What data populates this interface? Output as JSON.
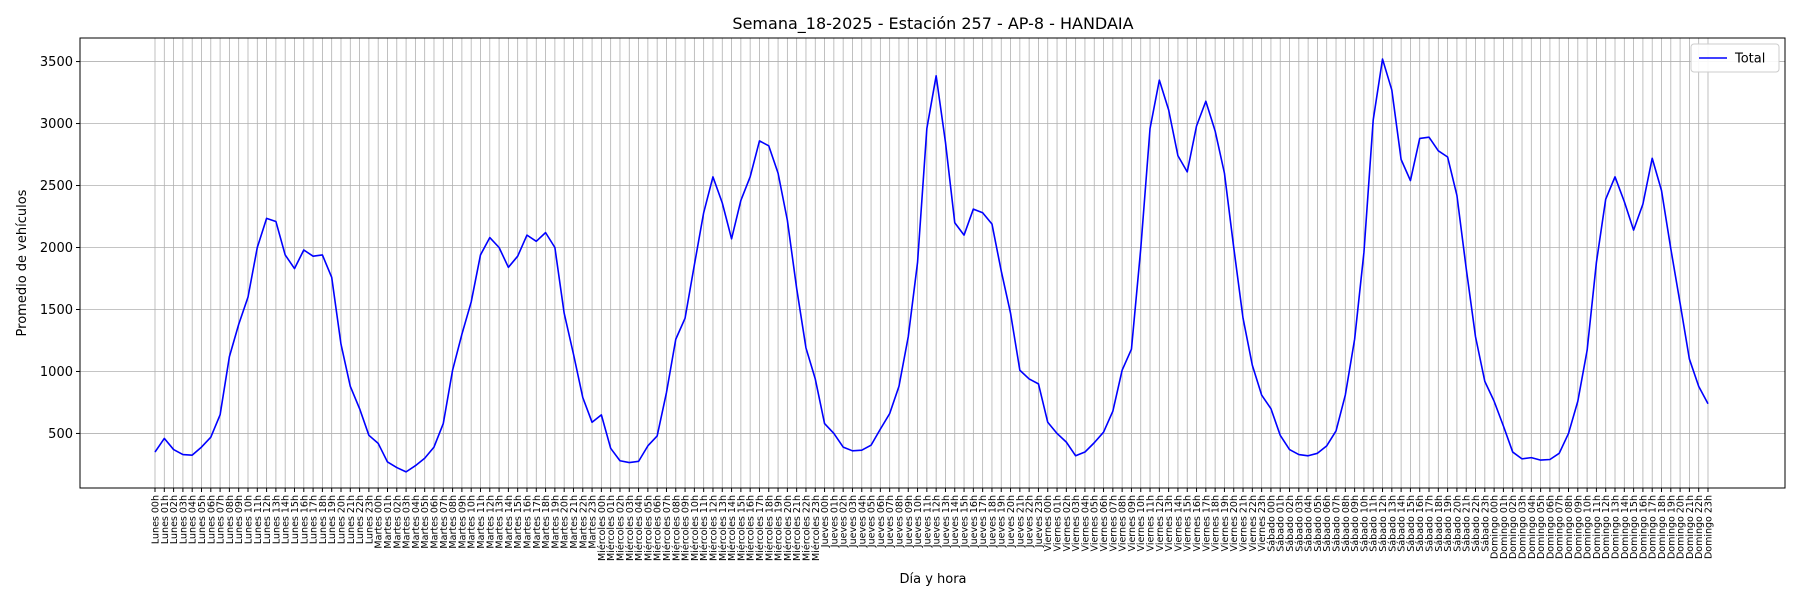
{
  "chart_data": {
    "type": "line",
    "title": "Semana_18-2025 - Estación 257 - AP-8  - HANDAIA",
    "xlabel": "Día y hora",
    "ylabel": "Promedio de vehículos",
    "ylim": [
      60,
      3690
    ],
    "yticks": [
      500,
      1000,
      1500,
      2000,
      2500,
      3000,
      3500
    ],
    "grid": true,
    "legend_position": "top-right",
    "days": [
      "Lunes",
      "Martes",
      "Miércoles",
      "Jueves",
      "Viernes",
      "Sábado",
      "Domingo"
    ],
    "series": [
      {
        "name": "Total",
        "color": "#0000ff",
        "values": [
          350,
          460,
          370,
          330,
          325,
          390,
          470,
          650,
          1120,
          1380,
          1600,
          2000,
          2235,
          2210,
          1940,
          1830,
          1980,
          1930,
          1940,
          1760,
          1220,
          880,
          700,
          485,
          420,
          270,
          225,
          190,
          240,
          300,
          390,
          580,
          1010,
          1300,
          1560,
          1940,
          2080,
          2000,
          1840,
          1930,
          2100,
          2050,
          2120,
          2000,
          1470,
          1140,
          790,
          590,
          650,
          380,
          280,
          265,
          275,
          400,
          480,
          830,
          1260,
          1430,
          1860,
          2280,
          2570,
          2360,
          2070,
          2380,
          2570,
          2860,
          2820,
          2600,
          2220,
          1670,
          1190,
          940,
          580,
          500,
          390,
          360,
          365,
          405,
          535,
          660,
          880,
          1280,
          1880,
          2960,
          3385,
          2850,
          2200,
          2100,
          2310,
          2280,
          2190,
          1810,
          1470,
          1010,
          940,
          900,
          590,
          500,
          430,
          320,
          350,
          425,
          510,
          680,
          1010,
          1180,
          1990,
          2960,
          3350,
          3110,
          2740,
          2610,
          2980,
          3180,
          2940,
          2600,
          2000,
          1430,
          1050,
          810,
          700,
          485,
          370,
          330,
          320,
          340,
          400,
          520,
          810,
          1260,
          1960,
          3030,
          3520,
          3270,
          2710,
          2540,
          2880,
          2890,
          2780,
          2730,
          2420,
          1830,
          1280,
          920,
          760,
          560,
          350,
          295,
          305,
          285,
          290,
          340,
          500,
          760,
          1170,
          1880,
          2390,
          2570,
          2370,
          2140,
          2350,
          2720,
          2460,
          1990,
          1550,
          1100,
          880,
          740
        ]
      }
    ]
  }
}
